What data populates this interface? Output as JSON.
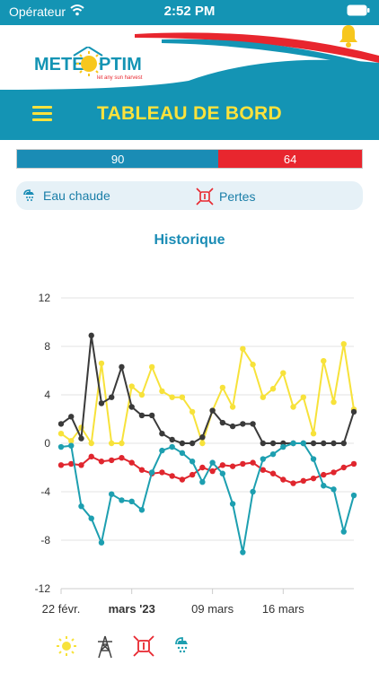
{
  "status": {
    "carrier": "Opérateur",
    "time": "2:52 PM"
  },
  "brand": {
    "logo_text_left": "METE",
    "logo_text_right": "PTIM",
    "logo_tagline": "let any sun harvest"
  },
  "header": {
    "title": "TABLEAU DE BORD"
  },
  "split_bar": {
    "left_value": "90",
    "right_value": "64",
    "left_share": 0.584
  },
  "legend_pill": {
    "hot_water": "Eau chaude",
    "losses": "Pertes"
  },
  "section": {
    "title": "Historique"
  },
  "colors": {
    "brand": "#1494b4",
    "accent": "#fde23c",
    "red": "#e8262e",
    "blue": "#1a8cb5",
    "gray": "#3a3a3a",
    "teal": "#1d9fb0"
  },
  "chart_data": {
    "type": "line",
    "y_ticks": [
      "12",
      "8",
      "4",
      "0",
      "-4",
      "-8",
      "-12"
    ],
    "ylim": [
      -12,
      12
    ],
    "x_labels": [
      {
        "text": "22 févr.",
        "bold": false,
        "index": 0
      },
      {
        "text": "mars '23",
        "bold": true,
        "index": 7
      },
      {
        "text": "09 mars",
        "bold": false,
        "index": 15
      },
      {
        "text": "16 mars",
        "bold": false,
        "index": 22
      }
    ],
    "series": [
      {
        "color": "#f7e23a",
        "values": [
          0.8,
          0.2,
          1.3,
          0.0,
          6.6,
          0.0,
          0.0,
          4.7,
          4.0,
          6.3,
          4.3,
          3.8,
          3.8,
          2.6,
          0.0,
          2.7,
          4.6,
          3.0,
          7.8,
          6.5,
          3.8,
          4.5,
          5.8,
          3.0,
          3.8,
          0.8,
          6.8,
          3.4,
          8.2,
          2.8
        ]
      },
      {
        "color": "#3a3a3a",
        "values": [
          1.6,
          2.2,
          0.4,
          8.9,
          3.3,
          3.8,
          6.3,
          3.0,
          2.3,
          2.3,
          0.8,
          0.3,
          0.0,
          0.0,
          0.5,
          2.7,
          1.7,
          1.4,
          1.6,
          1.6,
          0.0,
          0.0,
          0.0,
          0.0,
          0.0,
          0.0,
          0.0,
          0.0,
          0.0,
          2.6
        ]
      },
      {
        "color": "#e0262e",
        "values": [
          -1.8,
          -1.7,
          -1.8,
          -1.1,
          -1.5,
          -1.4,
          -1.2,
          -1.6,
          -2.2,
          -2.5,
          -2.4,
          -2.7,
          -3.0,
          -2.6,
          -2.0,
          -2.3,
          -1.8,
          -1.9,
          -1.7,
          -1.6,
          -2.2,
          -2.5,
          -3.0,
          -3.3,
          -3.1,
          -2.9,
          -2.6,
          -2.4,
          -2.0,
          -1.7
        ]
      },
      {
        "color": "#1d9fb0",
        "values": [
          -0.3,
          -0.2,
          -5.2,
          -6.2,
          -8.2,
          -4.2,
          -4.7,
          -4.8,
          -5.5,
          -2.4,
          -0.6,
          -0.3,
          -0.8,
          -1.5,
          -3.2,
          -1.6,
          -2.5,
          -5.0,
          -9.0,
          -4.0,
          -1.3,
          -0.9,
          -0.3,
          0.0,
          0.0,
          -1.3,
          -3.5,
          -3.8,
          -7.3,
          -4.3
        ]
      }
    ],
    "legend_icons": [
      "sun-icon",
      "pylon-icon",
      "losses-icon",
      "shower-icon"
    ]
  }
}
